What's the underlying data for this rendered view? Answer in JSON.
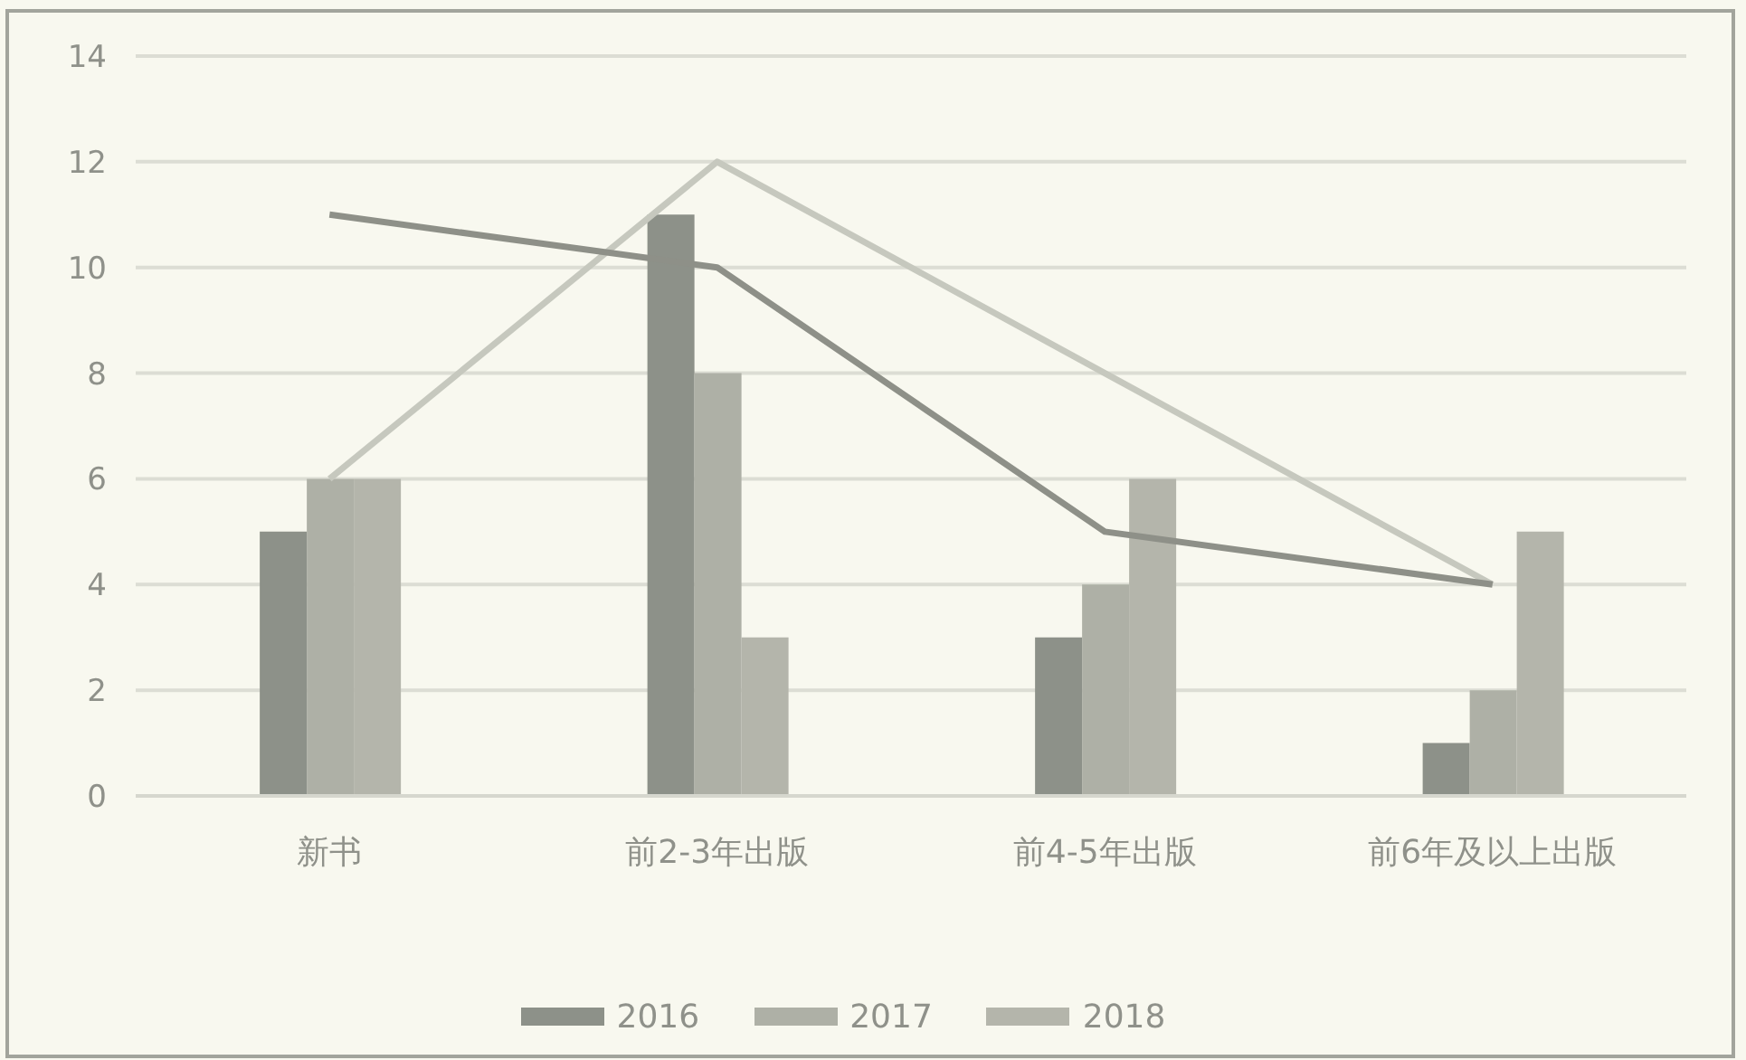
{
  "chart_data": {
    "type": "bar",
    "categories": [
      "新书",
      "前2-3年出版",
      "前4-5年出版",
      "前6年及以上出版"
    ],
    "series": [
      {
        "name": "2016",
        "color": "#8d9189",
        "values": [
          5,
          11,
          3,
          1
        ]
      },
      {
        "name": "2017",
        "color": "#aeb0a6",
        "values": [
          6,
          8,
          4,
          2
        ]
      },
      {
        "name": "2018",
        "color": "#b4b5ab",
        "values": [
          6,
          3,
          6,
          5
        ]
      },
      {
        "type": "line",
        "color": "#c6c8be",
        "values": [
          6,
          12,
          8,
          4
        ]
      },
      {
        "type": "line",
        "color": "#8e9088",
        "values": [
          11,
          10,
          5,
          4
        ]
      }
    ],
    "ylim": [
      0,
      14
    ],
    "yticks": [
      0,
      2,
      4,
      6,
      8,
      10,
      12,
      14
    ],
    "grid": "y",
    "legend": "bottom",
    "marker": "none",
    "line_style": "solid"
  }
}
